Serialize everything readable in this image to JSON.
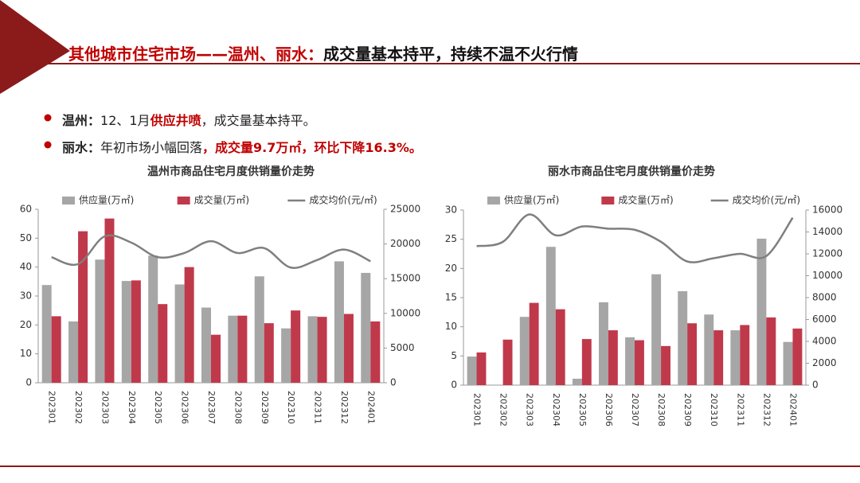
{
  "header": {
    "title": [
      "其他城市住宅市场——温州、丽水：",
      "成交量基本持平，持续不温不火行情"
    ]
  },
  "bullets": [
    [
      "温州：",
      "12、1月",
      "供应井喷",
      "，成交量基本持平。"
    ],
    [
      "丽水：",
      "年初市场小幅回落",
      "，成交量9.7万㎡，环比下降16.3%。"
    ]
  ],
  "chart_data": [
    {
      "type": "bar",
      "title": "温州市商品住宅月度供销量价走势",
      "legend": "top",
      "categories": [
        "202301",
        "202302",
        "202303",
        "202304",
        "202305",
        "202306",
        "202307",
        "202308",
        "202309",
        "202310",
        "202311",
        "202312",
        "202401"
      ],
      "series": [
        {
          "name": "供应量(万㎡)",
          "color": "#a6a6a6",
          "values": [
            33.8,
            21.2,
            42.6,
            35.2,
            44,
            34,
            26,
            23.2,
            36.8,
            18.8,
            23,
            42,
            38
          ]
        },
        {
          "name": "成交量(万㎡)",
          "color": "#c0394b",
          "values": [
            23,
            52.4,
            56.8,
            35.4,
            27.2,
            40,
            16.6,
            23.2,
            20.6,
            25,
            22.8,
            23.8,
            21.2
          ]
        },
        {
          "name": "成交均价(元/㎡)",
          "color": "#7f7f7f",
          "type": "line",
          "axis": "y2",
          "values": [
            18100,
            17100,
            21100,
            20200,
            18100,
            18700,
            20400,
            18700,
            19400,
            16600,
            17700,
            19200,
            17500
          ]
        }
      ],
      "ylim": [
        0,
        60
      ],
      "yticks": [
        0,
        10,
        20,
        30,
        40,
        50,
        60
      ],
      "y2lim": [
        0,
        25000
      ],
      "y2ticks": [
        0,
        5000,
        10000,
        15000,
        20000,
        25000
      ]
    },
    {
      "type": "bar",
      "title": "丽水市商品住宅月度供销量价走势",
      "legend": "top",
      "categories": [
        "202301",
        "202302",
        "202303",
        "202304",
        "202305",
        "202306",
        "202307",
        "202308",
        "202309",
        "202310",
        "202311",
        "202312",
        "202401"
      ],
      "series": [
        {
          "name": "供应量(万㎡)",
          "color": "#a6a6a6",
          "values": [
            4.9,
            0,
            11.7,
            23.7,
            1.1,
            14.2,
            8.2,
            19,
            16.1,
            12.1,
            9.4,
            25.1,
            7.4
          ]
        },
        {
          "name": "成交量(万㎡)",
          "color": "#c0394b",
          "values": [
            5.6,
            7.8,
            14.1,
            13,
            7.9,
            9.4,
            7.7,
            6.7,
            10.6,
            9.4,
            10.3,
            11.6,
            9.7
          ]
        },
        {
          "name": "成交均价(元/㎡)",
          "color": "#7f7f7f",
          "type": "line",
          "axis": "y2",
          "values": [
            12700,
            13100,
            15600,
            13700,
            14500,
            14300,
            14200,
            13100,
            11300,
            11600,
            12000,
            11800,
            15300
          ]
        }
      ],
      "ylim": [
        0,
        30
      ],
      "yticks": [
        0,
        5,
        10,
        15,
        20,
        25,
        30
      ],
      "y2lim": [
        0,
        16000
      ],
      "y2ticks": [
        0,
        2000,
        4000,
        6000,
        8000,
        10000,
        12000,
        14000,
        16000
      ]
    }
  ]
}
